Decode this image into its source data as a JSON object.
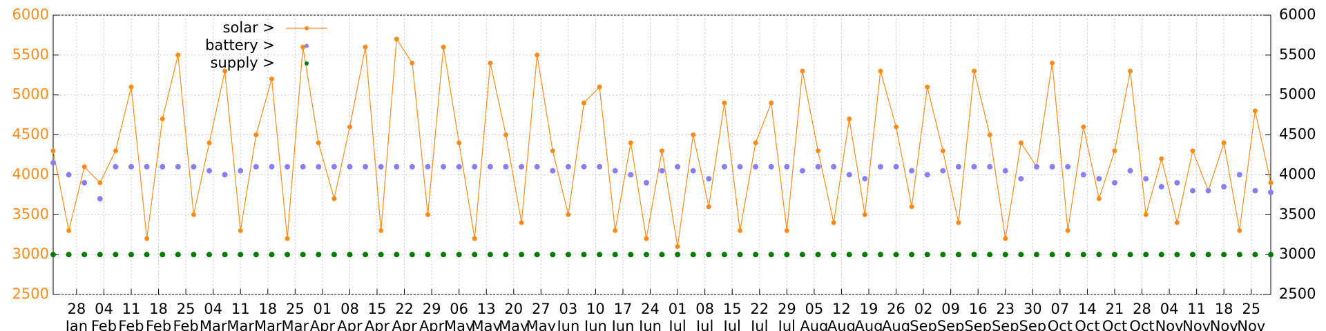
{
  "chart_data": {
    "type": "line",
    "x": [
      "01-22",
      "01-26",
      "01-30",
      "02-03",
      "02-07",
      "02-11",
      "02-15",
      "02-19",
      "02-23",
      "02-27",
      "03-03",
      "03-07",
      "03-11",
      "03-15",
      "03-19",
      "03-23",
      "03-27",
      "03-31",
      "04-04",
      "04-08",
      "04-12",
      "04-16",
      "04-20",
      "04-24",
      "04-28",
      "05-02",
      "05-06",
      "05-10",
      "05-14",
      "05-18",
      "05-22",
      "05-26",
      "05-30",
      "06-03",
      "06-07",
      "06-11",
      "06-15",
      "06-19",
      "06-23",
      "06-27",
      "07-01",
      "07-05",
      "07-09",
      "07-13",
      "07-17",
      "07-21",
      "07-25",
      "07-29",
      "08-02",
      "08-06",
      "08-10",
      "08-14",
      "08-18",
      "08-22",
      "08-26",
      "08-30",
      "09-03",
      "09-07",
      "09-11",
      "09-15",
      "09-19",
      "09-23",
      "09-27",
      "10-01",
      "10-05",
      "10-09",
      "10-13",
      "10-17",
      "10-21",
      "10-25",
      "10-29",
      "11-02",
      "11-06",
      "11-10",
      "11-14",
      "11-18",
      "11-22",
      "11-26",
      "11-30"
    ],
    "series": [
      {
        "name": "solar >",
        "color": "#ff8c1a",
        "lines": true,
        "values": [
          4300,
          3300,
          4100,
          3900,
          4300,
          5100,
          3200,
          4700,
          5500,
          3500,
          4400,
          5300,
          3300,
          4500,
          5200,
          3200,
          5600,
          4400,
          3700,
          4600,
          5600,
          3300,
          5700,
          5400,
          3500,
          5600,
          4400,
          3200,
          5400,
          4500,
          3400,
          5500,
          4300,
          3500,
          4900,
          5100,
          3300,
          4400,
          3200,
          4300,
          3100,
          4500,
          3600,
          4900,
          3300,
          4400,
          4900,
          3300,
          5300,
          4300,
          3400,
          4700,
          3500,
          5300,
          4600,
          3600,
          5100,
          4300,
          3400,
          5300,
          4500,
          3200,
          4400,
          4100,
          5400,
          3300,
          4600,
          3700,
          4300,
          5300,
          3500,
          4200,
          3400,
          4300,
          3800,
          4400,
          3300,
          4800,
          3900
        ]
      },
      {
        "name": "battery >",
        "color": "#8a7ff0",
        "lines": false,
        "values": [
          4150,
          4000,
          3900,
          3700,
          4100,
          4100,
          4100,
          4100,
          4100,
          4100,
          4050,
          4000,
          4050,
          4100,
          4100,
          4100,
          4100,
          4100,
          4100,
          4100,
          4100,
          4100,
          4100,
          4100,
          4100,
          4100,
          4100,
          4100,
          4100,
          4100,
          4100,
          4100,
          4050,
          4100,
          4100,
          4100,
          4050,
          4000,
          3900,
          4050,
          4100,
          4050,
          3950,
          4100,
          4100,
          4100,
          4100,
          4100,
          4050,
          4100,
          4100,
          4000,
          3950,
          4100,
          4100,
          4050,
          4000,
          4050,
          4100,
          4100,
          4100,
          4050,
          3950,
          4100,
          4100,
          4100,
          4000,
          3950,
          3900,
          4050,
          3950,
          3850,
          3900,
          3800,
          3800,
          3850,
          4000,
          3800,
          3780
        ]
      },
      {
        "name": "supply >",
        "color": "#007a00",
        "lines": false,
        "values": [
          3000,
          3000,
          3000,
          3000,
          3000,
          3000,
          3000,
          3000,
          3000,
          3000,
          3000,
          3000,
          3000,
          3000,
          3000,
          3000,
          3000,
          3000,
          3000,
          3000,
          3000,
          3000,
          3000,
          3000,
          3000,
          3000,
          3000,
          3000,
          3000,
          3000,
          3000,
          3000,
          3000,
          3000,
          3000,
          3000,
          3000,
          3000,
          3000,
          3000,
          3000,
          3000,
          3000,
          3000,
          3000,
          3000,
          3000,
          3000,
          3000,
          3000,
          3000,
          3000,
          3000,
          3000,
          3000,
          3000,
          3000,
          3000,
          3000,
          3000,
          3000,
          3000,
          3000,
          3000,
          3000,
          3000,
          3000,
          3000,
          3000,
          3000,
          3000,
          3000,
          3000,
          3000,
          3000,
          3000,
          3000,
          3000,
          3000
        ]
      }
    ],
    "xlim": [
      "01-22",
      "11-30"
    ],
    "xticks": [
      {
        "value": "01-28",
        "label": "28 Jan"
      },
      {
        "value": "02-04",
        "label": "04 Feb"
      },
      {
        "value": "02-11",
        "label": "11 Feb"
      },
      {
        "value": "02-18",
        "label": "18 Feb"
      },
      {
        "value": "02-25",
        "label": "25 Feb"
      },
      {
        "value": "03-04",
        "label": "04 Mar"
      },
      {
        "value": "03-11",
        "label": "11 Mar"
      },
      {
        "value": "03-18",
        "label": "18 Mar"
      },
      {
        "value": "03-25",
        "label": "25 Mar"
      },
      {
        "value": "04-01",
        "label": "01 Apr"
      },
      {
        "value": "04-08",
        "label": "08 Apr"
      },
      {
        "value": "04-15",
        "label": "15 Apr"
      },
      {
        "value": "04-22",
        "label": "22 Apr"
      },
      {
        "value": "04-29",
        "label": "29 Apr"
      },
      {
        "value": "05-06",
        "label": "06 May"
      },
      {
        "value": "05-13",
        "label": "13 May"
      },
      {
        "value": "05-20",
        "label": "20 May"
      },
      {
        "value": "05-27",
        "label": "27 May"
      },
      {
        "value": "06-03",
        "label": "03 Jun"
      },
      {
        "value": "06-10",
        "label": "10 Jun"
      },
      {
        "value": "06-17",
        "label": "17 Jun"
      },
      {
        "value": "06-24",
        "label": "24 Jun"
      },
      {
        "value": "07-01",
        "label": "01 Jul"
      },
      {
        "value": "07-08",
        "label": "08 Jul"
      },
      {
        "value": "07-15",
        "label": "15 Jul"
      },
      {
        "value": "07-22",
        "label": "22 Jul"
      },
      {
        "value": "07-29",
        "label": "29 Jul"
      },
      {
        "value": "08-05",
        "label": "05 Aug"
      },
      {
        "value": "08-12",
        "label": "12 Aug"
      },
      {
        "value": "08-19",
        "label": "19 Aug"
      },
      {
        "value": "08-26",
        "label": "26 Aug"
      },
      {
        "value": "09-02",
        "label": "02 Sep"
      },
      {
        "value": "09-09",
        "label": "09 Sep"
      },
      {
        "value": "09-16",
        "label": "16 Sep"
      },
      {
        "value": "09-23",
        "label": "23 Sep"
      },
      {
        "value": "09-30",
        "label": "30 Sep"
      },
      {
        "value": "10-07",
        "label": "07 Oct"
      },
      {
        "value": "10-14",
        "label": "14 Oct"
      },
      {
        "value": "10-21",
        "label": "21 Oct"
      },
      {
        "value": "10-28",
        "label": "28 Oct"
      },
      {
        "value": "11-04",
        "label": "04 Nov"
      },
      {
        "value": "11-11",
        "label": "11 Nov"
      },
      {
        "value": "11-18",
        "label": "18 Nov"
      },
      {
        "value": "11-25",
        "label": "25 Nov"
      }
    ],
    "ylim": [
      2500,
      6000
    ],
    "yticks": [
      2500,
      3000,
      3500,
      4000,
      4500,
      5000,
      5500,
      6000
    ],
    "y2lim": [
      2500,
      6000
    ],
    "y2ticks": [
      2500,
      3000,
      3500,
      4000,
      4500,
      5000,
      5500,
      6000
    ],
    "ytick_color": "#ff8c1a",
    "grid": true
  }
}
